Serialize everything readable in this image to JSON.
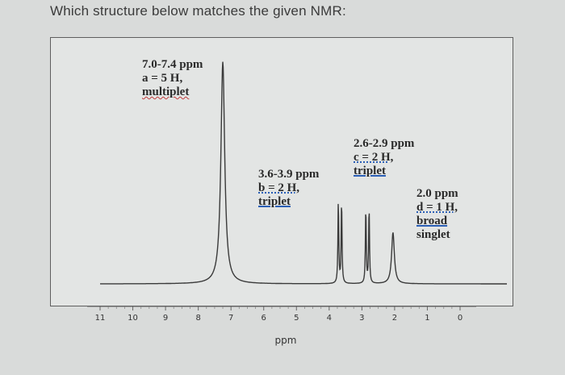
{
  "question": "Which structure below matches the given NMR:",
  "chart_data": {
    "type": "line",
    "xlabel": "ppm",
    "xlim": [
      11,
      0
    ],
    "xticks": [
      "11",
      "10",
      "9",
      "8",
      "7",
      "6",
      "5",
      "4",
      "3",
      "2",
      "1",
      "0"
    ],
    "peaks": [
      {
        "ppm": 7.25,
        "height": 0.95,
        "width": 0.07
      },
      {
        "ppm": 3.72,
        "height": 0.36,
        "width": 0.015
      },
      {
        "ppm": 3.62,
        "height": 0.36,
        "width": 0.015
      },
      {
        "ppm": 2.88,
        "height": 0.33,
        "width": 0.015
      },
      {
        "ppm": 2.78,
        "height": 0.33,
        "width": 0.015
      },
      {
        "ppm": 2.05,
        "height": 0.22,
        "width": 0.05
      }
    ],
    "annotations": [
      {
        "lines": [
          "7.0-7.4 ppm",
          "a = 5 H,",
          "multiplet"
        ]
      },
      {
        "lines": [
          "3.6-3.9 ppm",
          "b = 2 H,",
          "triplet"
        ]
      },
      {
        "lines": [
          "2.6-2.9 ppm",
          "c = 2 H,",
          "triplet"
        ]
      },
      {
        "lines": [
          "2.0 ppm",
          "d = 1 H,",
          "broad",
          "singlet"
        ]
      }
    ]
  }
}
